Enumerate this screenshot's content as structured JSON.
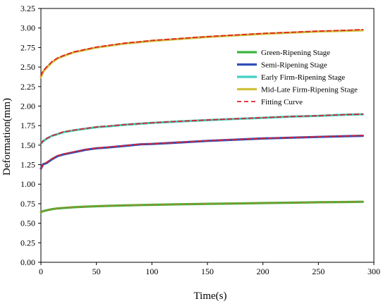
{
  "chart_data": {
    "type": "line",
    "title": "",
    "xlabel": "Time(s)",
    "ylabel": "Deformation(mm)",
    "xlim": [
      0,
      300
    ],
    "ylim": [
      0,
      3.25
    ],
    "x_ticks": [
      0,
      50,
      100,
      150,
      200,
      250,
      300
    ],
    "x_tick_labels": [
      "0",
      "50",
      "100",
      "150",
      "200",
      "250",
      "300"
    ],
    "y_ticks": [
      0,
      0.25,
      0.5,
      0.75,
      1.0,
      1.25,
      1.5,
      1.75,
      2.0,
      2.25,
      2.5,
      2.75,
      3.0,
      3.25
    ],
    "y_tick_labels": [
      "0.00",
      "0.25",
      "0.50",
      "0.75",
      "1.00",
      "1.25",
      "1.50",
      "1.75",
      "2.00",
      "2.25",
      "2.50",
      "2.75",
      "3.00",
      "3.25"
    ],
    "grid": false,
    "legend_position": "top-right",
    "x": [
      0,
      2,
      5,
      10,
      15,
      20,
      30,
      40,
      50,
      60,
      75,
      90,
      100,
      120,
      150,
      175,
      200,
      225,
      250,
      275,
      290
    ],
    "series": [
      {
        "name": "Green-Ripening Stage",
        "color": "#3cb43c",
        "style": "solid",
        "values": [
          0.64,
          0.655,
          0.665,
          0.68,
          0.69,
          0.695,
          0.705,
          0.712,
          0.718,
          0.722,
          0.728,
          0.733,
          0.736,
          0.741,
          0.748,
          0.753,
          0.758,
          0.763,
          0.768,
          0.772,
          0.775
        ]
      },
      {
        "name": "Semi-Ripening Stage",
        "color": "#2f4fb8",
        "style": "solid",
        "values": [
          1.2,
          1.255,
          1.27,
          1.32,
          1.36,
          1.38,
          1.41,
          1.44,
          1.46,
          1.47,
          1.49,
          1.51,
          1.515,
          1.53,
          1.555,
          1.57,
          1.585,
          1.595,
          1.605,
          1.615,
          1.62
        ]
      },
      {
        "name": "Early Firm-Ripening Stage",
        "color": "#3fd1c2",
        "style": "solid",
        "values": [
          1.52,
          1.55,
          1.58,
          1.62,
          1.64,
          1.665,
          1.69,
          1.71,
          1.73,
          1.74,
          1.76,
          1.775,
          1.785,
          1.8,
          1.82,
          1.835,
          1.85,
          1.865,
          1.875,
          1.89,
          1.895
        ]
      },
      {
        "name": "Mid-Late Firm-Ripening Stage",
        "color": "#cfc23a",
        "style": "solid",
        "values": [
          2.37,
          2.44,
          2.49,
          2.56,
          2.61,
          2.64,
          2.69,
          2.72,
          2.75,
          2.77,
          2.8,
          2.82,
          2.835,
          2.855,
          2.885,
          2.905,
          2.925,
          2.94,
          2.955,
          2.965,
          2.97
        ]
      },
      {
        "name": "Fitting Curve",
        "color": "#e0212a",
        "style": "dashed",
        "values": [
          2.39,
          2.45,
          2.5,
          2.57,
          2.615,
          2.645,
          2.695,
          2.725,
          2.755,
          2.775,
          2.805,
          2.825,
          2.84,
          2.86,
          2.89,
          2.91,
          2.93,
          2.945,
          2.96,
          2.97,
          2.98
        ]
      }
    ],
    "fitting_overlays": [
      {
        "color": "#e0212a",
        "style": "dashed",
        "values": [
          1.52,
          1.555,
          1.585,
          1.62,
          1.645,
          1.668,
          1.693,
          1.713,
          1.732,
          1.743,
          1.762,
          1.777,
          1.787,
          1.802,
          1.822,
          1.837,
          1.852,
          1.866,
          1.877,
          1.891,
          1.897
        ]
      },
      {
        "color": "#e0212a",
        "style": "dashed",
        "values": [
          1.2,
          1.25,
          1.28,
          1.325,
          1.365,
          1.385,
          1.415,
          1.443,
          1.462,
          1.473,
          1.492,
          1.512,
          1.517,
          1.532,
          1.556,
          1.572,
          1.586,
          1.597,
          1.607,
          1.617,
          1.623
        ]
      },
      {
        "color": "#a08a2a",
        "style": "dashed",
        "values": [
          0.642,
          0.656,
          0.667,
          0.681,
          0.691,
          0.697,
          0.706,
          0.713,
          0.719,
          0.723,
          0.729,
          0.734,
          0.737,
          0.742,
          0.749,
          0.754,
          0.759,
          0.764,
          0.769,
          0.773,
          0.776
        ]
      }
    ]
  }
}
